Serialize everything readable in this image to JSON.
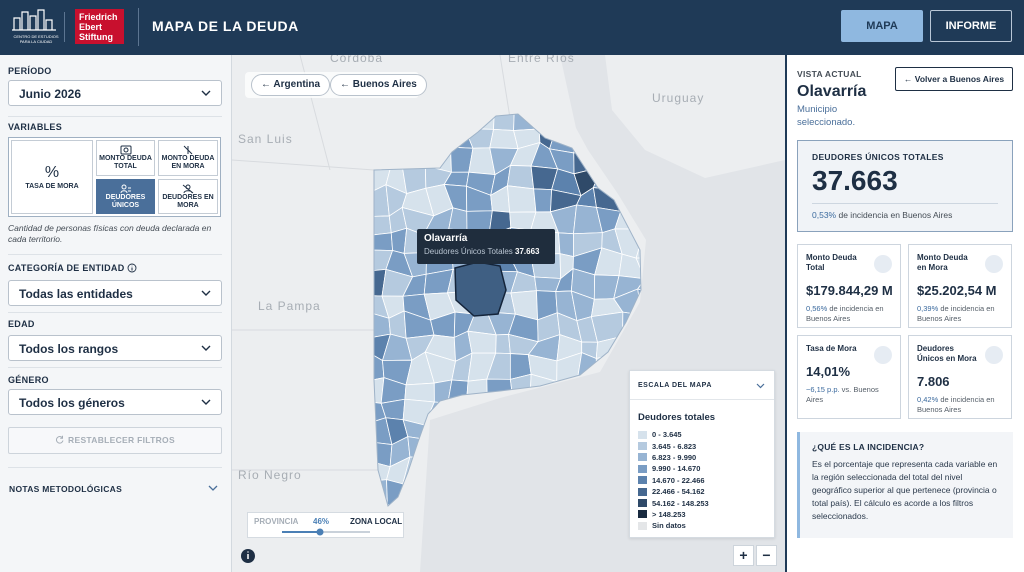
{
  "header": {
    "logo_text": "CENTRO DE ESTUDIOS PARA LA CIUDAD",
    "fes": [
      "Friedrich",
      "Ebert",
      "Stiftung"
    ],
    "title": "MAPA DE LA DEUDA",
    "buttons": [
      "MAPA",
      "INFORME"
    ]
  },
  "sidebar": {
    "periodo": {
      "label": "PERÍODO",
      "value": "Junio 2026"
    },
    "variables": {
      "label": "VARIABLES",
      "items": [
        {
          "icon": "%",
          "label": "TASA DE MORA"
        },
        {
          "label": "MONTO DEUDA TOTAL"
        },
        {
          "label": "MONTO DEUDA EN MORA"
        },
        {
          "label": "DEUDORES ÚNICOS"
        },
        {
          "label": "DEUDORES EN MORA"
        }
      ],
      "description": "Cantidad de personas físicas con deuda declarada en cada territorio."
    },
    "filters": [
      {
        "label": "CATEGORÍA DE ENTIDAD",
        "value": "Todas las entidades"
      },
      {
        "label": "EDAD",
        "value": "Todos los rangos"
      },
      {
        "label": "GÉNERO",
        "value": "Todos los géneros"
      }
    ],
    "reset": "RESTABLECER FILTROS",
    "notes": "NOTAS METODOLÓGICAS"
  },
  "map": {
    "breadcrumbs": [
      "Argentina",
      "Buenos Aires"
    ],
    "places": [
      "Córdoba",
      "Entre Ríos",
      "Uruguay",
      "San Luis",
      "La Pampa",
      "Río Negro"
    ],
    "tooltip": {
      "title": "Olavarría",
      "label": "Deudores Únicos Totales",
      "value": "37.663"
    },
    "scale": {
      "title": "ESCALA DEL MAPA",
      "legend_title": "Deudores totales",
      "items": [
        {
          "label": "0 - 3.645",
          "color": "#d6e2ec"
        },
        {
          "label": "3.645 - 6.823",
          "color": "#b5cadf"
        },
        {
          "label": "6.823 - 9.990",
          "color": "#97b4d3"
        },
        {
          "label": "9.990 - 14.670",
          "color": "#7a9dc4"
        },
        {
          "label": "14.670 - 22.466",
          "color": "#5c82ad"
        },
        {
          "label": "22.466 - 54.162",
          "color": "#466890"
        },
        {
          "label": "54.162 - 148.253",
          "color": "#2f4a69"
        },
        {
          "label": "> 148.253",
          "color": "#182a3f"
        },
        {
          "label": "Sin datos",
          "color": "#e4e6e8"
        }
      ]
    },
    "slider": {
      "left": "PROVINCIA",
      "value": "46%",
      "right": "ZONA LOCAL"
    },
    "zoom": [
      "+",
      "−"
    ]
  },
  "detail": {
    "view_label": "VISTA ACTUAL",
    "back": "Volver a Buenos Aires",
    "name": "Olavarría",
    "kind": "Municipio seleccionado.",
    "main": {
      "label": "DEUDORES ÚNICOS TOTALES",
      "value": "37.663",
      "note_value": "0,53%",
      "note_text": "de incidencia en Buenos Aires"
    },
    "cards": [
      {
        "label": "Monto Deuda Total",
        "value": "$179.844,29 M",
        "note_value": "0,56%",
        "note_text": "de incidencia en Buenos Aires"
      },
      {
        "label": "Monto Deuda en Mora",
        "value": "$25.202,54 M",
        "note_value": "0,39%",
        "note_text": "de incidencia en Buenos Aires"
      },
      {
        "label": "Tasa de Mora",
        "value": "14,01%",
        "note_value": "−6,15 p.p.",
        "note_text": "vs. Buenos Aires"
      },
      {
        "label": "Deudores Únicos en Mora",
        "value": "7.806",
        "note_value": "0,42%",
        "note_text": "de incidencia en Buenos Aires"
      }
    ],
    "info": {
      "title": "¿QUÉ ES LA INCIDENCIA?",
      "text": "Es el porcentaje que representa cada variable en la región seleccionada del total del nivel geográfico superior al que pertenece (provincia o total país). El cálculo es acorde a los filtros seleccionados."
    }
  }
}
